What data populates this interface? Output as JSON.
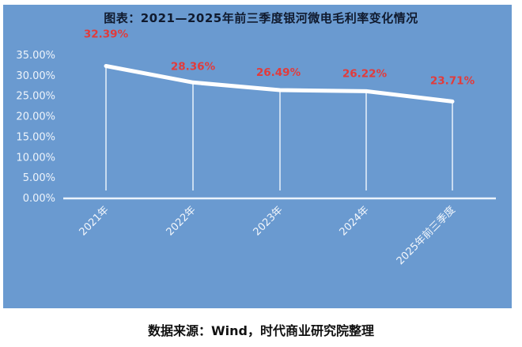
{
  "title": "图表：2021—2025年前三季度银河微电毛利率变化情况",
  "footer": "数据来源：Wind，时代商业研究院整理",
  "colors": {
    "panel_background": "#6a9ad0",
    "line": "#ffffff",
    "data_label": "#e23b3b",
    "axis_text": "#eef4fb",
    "title": "#101a2e"
  },
  "y_axis": {
    "ticks": [
      "35.00%",
      "30.00%",
      "25.00%",
      "20.00%",
      "15.00%",
      "10.00%",
      "5.00%",
      "0.00%"
    ]
  },
  "x_axis": {
    "ticks": [
      "2021年",
      "2022年",
      "2023年",
      "2024年",
      "2025年前三季度"
    ]
  },
  "data_labels": [
    "32.39%",
    "28.36%",
    "26.49%",
    "26.22%",
    "23.71%"
  ],
  "chart_data": {
    "type": "line",
    "title": "图表：2021—2025年前三季度银河微电毛利率变化情况",
    "categories": [
      "2021年",
      "2022年",
      "2023年",
      "2024年",
      "2025年前三季度"
    ],
    "series": [
      {
        "name": "毛利率",
        "values": [
          32.39,
          28.36,
          26.49,
          26.22,
          23.71
        ],
        "unit": "%"
      }
    ],
    "xlabel": "",
    "ylabel": "",
    "ylim": [
      0,
      35
    ],
    "ytick_step": 5,
    "grid": false,
    "drop_lines": true,
    "legend": "none",
    "source": "数据来源：Wind，时代商业研究院整理"
  }
}
